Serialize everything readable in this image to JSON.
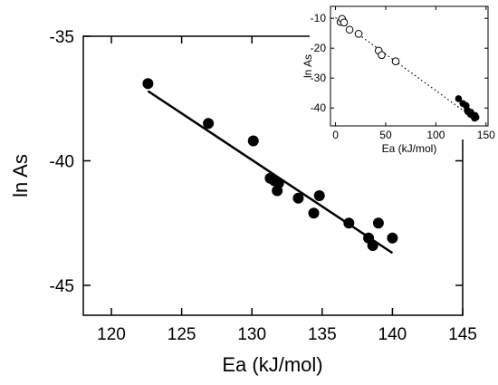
{
  "chart_data": [
    {
      "type": "scatter",
      "xlabel": "Ea (kJ/mol)",
      "ylabel": "ln As",
      "xlim": [
        118,
        145
      ],
      "ylim": [
        -46.2,
        -35
      ],
      "xticks": [
        120,
        125,
        130,
        135,
        140,
        145
      ],
      "xtick_labels": [
        "120",
        "125",
        "130",
        "135",
        "140",
        "145"
      ],
      "yticks": [
        -35,
        -40,
        -45
      ],
      "ytick_labels": [
        "-35",
        "-40",
        "-45"
      ],
      "grid": false,
      "series": [
        {
          "marker": "filled-circle",
          "color": "#000000",
          "x": [
            122.6,
            126.9,
            130.1,
            131.3,
            131.6,
            131.8,
            131.9,
            133.3,
            134.4,
            134.8,
            136.9,
            138.3,
            138.6,
            139.0,
            140.0
          ],
          "y": [
            -36.9,
            -38.5,
            -39.2,
            -40.7,
            -40.8,
            -41.2,
            -40.9,
            -41.5,
            -42.1,
            -41.4,
            -42.5,
            -43.1,
            -43.4,
            -42.5,
            -43.1
          ]
        }
      ],
      "fit_line": {
        "style": "solid",
        "x": [
          122.6,
          140.0
        ],
        "y": [
          -37.2,
          -43.7
        ]
      }
    },
    {
      "type": "scatter",
      "position": "inset-top-right",
      "xlabel": "Ea (kJ/mol)",
      "ylabel": "ln As",
      "xlim": [
        -5,
        152
      ],
      "ylim": [
        -46,
        -6
      ],
      "xticks": [
        0,
        50,
        100,
        150
      ],
      "xtick_labels": [
        "0",
        "50",
        "100",
        "150"
      ],
      "yticks": [
        -10,
        -20,
        -30,
        -40
      ],
      "ytick_labels": [
        "-10",
        "-20",
        "-30",
        "-40"
      ],
      "grid": false,
      "series": [
        {
          "marker": "open-circle",
          "color": "#000000",
          "x": [
            5,
            6.5,
            8.5,
            14,
            23,
            43,
            46,
            60
          ],
          "y": [
            -11.2,
            -10.2,
            -11.4,
            -13.8,
            -15.2,
            -20.8,
            -22.3,
            -24.4
          ]
        },
        {
          "marker": "filled-circle",
          "color": "#000000",
          "x": [
            122.6,
            126.9,
            130.1,
            131.3,
            131.8,
            133.3,
            134.4,
            134.8,
            136.9,
            138.3,
            138.6,
            139.0,
            140.0
          ],
          "y": [
            -36.9,
            -38.5,
            -39.2,
            -40.7,
            -41.2,
            -41.5,
            -42.1,
            -41.4,
            -42.5,
            -43.1,
            -43.4,
            -42.5,
            -43.1
          ]
        }
      ],
      "fit_line": {
        "style": "dotted",
        "x": [
          0,
          141
        ],
        "y": [
          -9.8,
          -44.2
        ]
      }
    }
  ]
}
